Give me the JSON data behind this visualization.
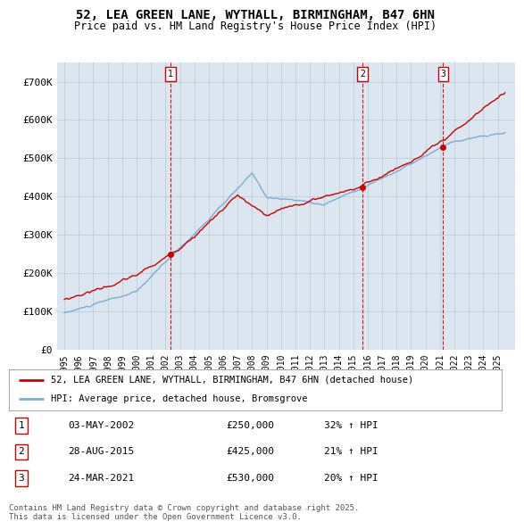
{
  "title": "52, LEA GREEN LANE, WYTHALL, BIRMINGHAM, B47 6HN",
  "subtitle": "Price paid vs. HM Land Registry's House Price Index (HPI)",
  "plot_bg_color": "#dce6f0",
  "fig_bg_color": "#ffffff",
  "sale_color": "#cc0000",
  "hpi_color": "#7aadd4",
  "ylim": [
    0,
    750000
  ],
  "yticks": [
    0,
    100000,
    200000,
    300000,
    400000,
    500000,
    600000,
    700000
  ],
  "ytick_labels": [
    "£0",
    "£100K",
    "£200K",
    "£300K",
    "£400K",
    "£500K",
    "£600K",
    "£700K"
  ],
  "transactions": [
    {
      "num": 1,
      "date": "03-MAY-2002",
      "price": 250000,
      "hpi_change": "32% ↑ HPI",
      "year": 2002.35
    },
    {
      "num": 2,
      "date": "28-AUG-2015",
      "price": 425000,
      "hpi_change": "21% ↑ HPI",
      "year": 2015.65
    },
    {
      "num": 3,
      "date": "24-MAR-2021",
      "price": 530000,
      "hpi_change": "20% ↑ HPI",
      "year": 2021.22
    }
  ],
  "legend_sale_label": "52, LEA GREEN LANE, WYTHALL, BIRMINGHAM, B47 6HN (detached house)",
  "legend_hpi_label": "HPI: Average price, detached house, Bromsgrove",
  "footer": "Contains HM Land Registry data © Crown copyright and database right 2025.\nThis data is licensed under the Open Government Licence v3.0."
}
